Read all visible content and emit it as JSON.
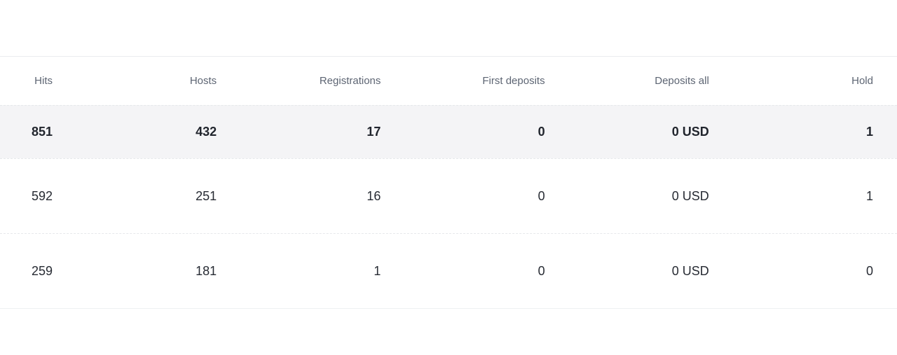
{
  "table": {
    "columns": [
      {
        "label": "Hits"
      },
      {
        "label": "Hosts"
      },
      {
        "label": "Registrations"
      },
      {
        "label": "First deposits"
      },
      {
        "label": "Deposits all"
      },
      {
        "label": "Hold"
      }
    ],
    "totals_row": {
      "cells": [
        "851",
        "432",
        "17",
        "0",
        "0 USD",
        "1"
      ]
    },
    "rows": [
      {
        "cells": [
          "592",
          "251",
          "16",
          "0",
          "0 USD",
          "1"
        ]
      },
      {
        "cells": [
          "259",
          "181",
          "1",
          "0",
          "0 USD",
          "0"
        ]
      }
    ]
  },
  "colors": {
    "header_text": "#5d6573",
    "body_text": "#272b33",
    "totals_row_background": "#f4f4f6",
    "table_border_solid": "#eaecef",
    "row_border_dashed": "#e6e8eb",
    "page_background": "#ffffff"
  }
}
